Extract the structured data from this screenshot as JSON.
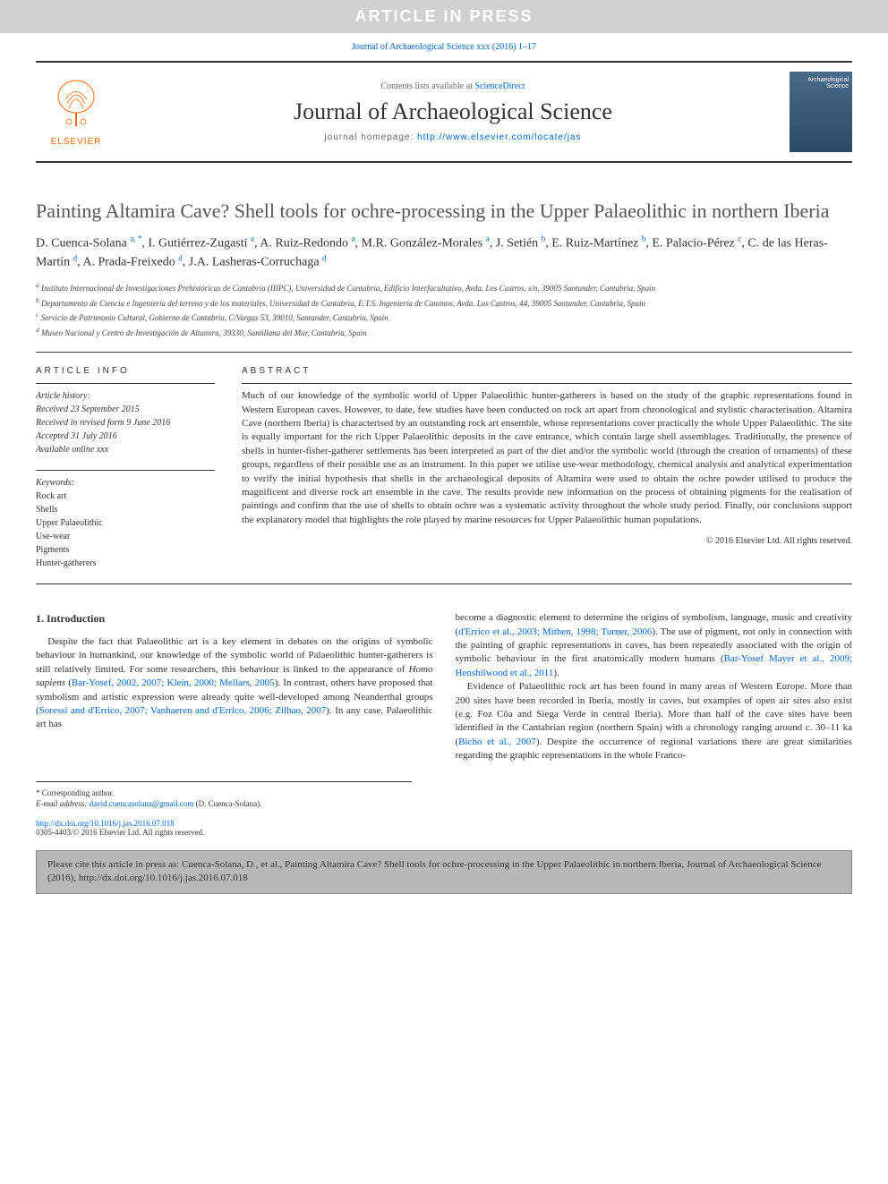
{
  "banner": "ARTICLE IN PRESS",
  "journal_ref": {
    "prefix": "Journal of Archaeological Science xxx (2016) 1–17",
    "link_text": "Journal of Archaeological Science xxx (2016) 1–17"
  },
  "header": {
    "contents_prefix": "Contents lists available at ",
    "contents_link": "ScienceDirect",
    "journal_name": "Journal of Archaeological Science",
    "homepage_label": "journal homepage: ",
    "homepage_url": "http://www.elsevier.com/locate/jas",
    "elsevier_label": "ELSEVIER",
    "cover_label": "Archaeological\nScience"
  },
  "title": "Painting Altamira Cave? Shell tools for ochre-processing in the Upper Palaeolithic in northern Iberia",
  "authors_html": "D. Cuenca-Solana <a href='#'><sup>a, *</sup></a>, I. Gutiérrez-Zugasti <a href='#'><sup>a</sup></a>, A. Ruiz-Redondo <a href='#'><sup>a</sup></a>, M.R. González-Morales <a href='#'><sup>a</sup></a>, J. Setién <a href='#'><sup>b</sup></a>, E. Ruiz-Martínez <a href='#'><sup>b</sup></a>, E. Palacio-Pérez <a href='#'><sup>c</sup></a>, C. de las Heras-Martín <a href='#'><sup>d</sup></a>, A. Prada-Freixedo <a href='#'><sup>d</sup></a>, J.A. Lasheras-Corruchaga <a href='#'><sup>d</sup></a>",
  "affiliations": {
    "a": "Instituto Internacional de Investigaciones Prehistóricas de Cantabria (IIIPC), Universidad de Cantabria, Edificio Interfacultativo, Avda. Los Castros, s/n, 39005 Santander, Cantabria, Spain",
    "b": "Departamento de Ciencia e Ingeniería del terreno y de los materiales, Universidad de Cantabria, E.T.S. Ingeniería de Caminos, Avda. Los Castros, 44, 39005 Santander, Cantabria, Spain",
    "c": "Servicio de Patrimonio Cultural, Gobierno de Cantabria, C/Vargas 53, 39010, Santander, Cantabria, Spain",
    "d": "Museo Nacional y Centro de Investigación de Altamira, 39330, Santillana del Mar, Cantabria, Spain"
  },
  "article_info": {
    "heading": "ARTICLE INFO",
    "history_label": "Article history:",
    "received": "Received 23 September 2015",
    "revised": "Received in revised form 9 June 2016",
    "accepted": "Accepted 31 July 2016",
    "online": "Available online xxx",
    "keywords_label": "Keywords:",
    "keywords": [
      "Rock art",
      "Shells",
      "Upper Palaeolithic",
      "Use-wear",
      "Pigments",
      "Hunter-gatherers"
    ]
  },
  "abstract": {
    "heading": "ABSTRACT",
    "text": "Much of our knowledge of the symbolic world of Upper Palaeolithic hunter-gatherers is based on the study of the graphic representations found in Western European caves. However, to date, few studies have been conducted on rock art apart from chronological and stylistic characterisation. Altamira Cave (northern Iberia) is characterised by an outstanding rock art ensemble, whose representations cover practically the whole Upper Palaeolithic. The site is equally important for the rich Upper Palaeolithic deposits in the cave entrance, which contain large shell assemblages. Traditionally, the presence of shells in hunter-fisher-gatherer settlements has been interpreted as part of the diet and/or the symbolic world (through the creation of ornaments) of these groups, regardless of their possible use as an instrument. In this paper we utilise use-wear methodology, chemical analysis and analytical experimentation to verify the initial hypothesis that shells in the archaeological deposits of Altamira were used to obtain the ochre powder utilised to produce the magnificent and diverse rock art ensemble in the cave. The results provide new information on the process of obtaining pigments for the realisation of paintings and confirm that the use of shells to obtain ochre was a systematic activity throughout the whole study period. Finally, our conclusions support the explanatory model that highlights the role played by marine resources for Upper Palaeolithic human populations.",
    "copyright": "© 2016 Elsevier Ltd. All rights reserved."
  },
  "body": {
    "section1_title": "1. Introduction",
    "col1_p1_a": "Despite the fact that Palaeolithic art is a key element in debates on the origins of symbolic behaviour in humankind, our knowledge of the symbolic world of Palaeolithic hunter-gatherers is still relatively limited. For some researchers, this behaviour is linked to the appearance of ",
    "col1_p1_em": "Homo sapiens",
    "col1_p1_b": " (",
    "col1_cite1": "Bar-Yosef, 2002, 2007; Klein, 2000; Mellars, 2005",
    "col1_p1_c": "). In contrast, others have proposed that symbolism and artistic expression were already quite well-developed among Neanderthal groups (",
    "col1_cite2": "Soressi and d'Errico, 2007; Vanhaeren and d'Errico, 2006; Zilhao, 2007",
    "col1_p1_d": "). In any case, Palaeolithic art has",
    "col2_p1_a": "become a diagnostic element to determine the origins of symbolism, language, music and creativity (",
    "col2_cite1": "d'Errico et al., 2003; Mithen, 1998; Turner, 2006",
    "col2_p1_b": "). The use of pigment, not only in connection with the painting of graphic representations in caves, has been repeatedly associated with the origin of symbolic behaviour in the first anatomically modern humans (",
    "col2_cite2": "Bar-Yosef Mayer et al., 2009; Henshilwood et al., 2011",
    "col2_p1_c": ").",
    "col2_p2_a": "Evidence of Palaeolithic rock art has been found in many areas of Western Europe. More than 200 sites have been recorded in Iberia, mostly in caves, but examples of open air sites also exist (e.g. Foz Côa and Siega Verde in central Iberia). More than half of the cave sites have been identified in the Cantabrian region (northern Spain) with a chronology ranging around c. 30–11 ka (",
    "col2_cite3": "Bicho et al., 2007",
    "col2_p2_b": "). Despite the occurrence of regional variations there are great similarities regarding the graphic representations in the whole Franco-"
  },
  "footnote": {
    "corresponding": "* Corresponding author.",
    "email_label": "E-mail address: ",
    "email": "david.cuencasolana@gmail.com",
    "email_suffix": " (D. Cuenca-Solana)."
  },
  "doi": {
    "url": "http://dx.doi.org/10.1016/j.jas.2016.07.018",
    "issn_line": "0305-4403/© 2016 Elsevier Ltd. All rights reserved."
  },
  "cite_box": "Please cite this article in press as: Cuenca-Solana, D., et al., Painting Altamira Cave? Shell tools for ochre-processing in the Upper Palaeolithic in northern Iberia, Journal of Archaeological Science (2016), http://dx.doi.org/10.1016/j.jas.2016.07.018",
  "colors": {
    "banner_bg": "#d0d0d0",
    "banner_fg": "#ffffff",
    "link": "#0066cc",
    "elsevier": "#ff6600",
    "citebox_bg": "#b8b8b8"
  }
}
